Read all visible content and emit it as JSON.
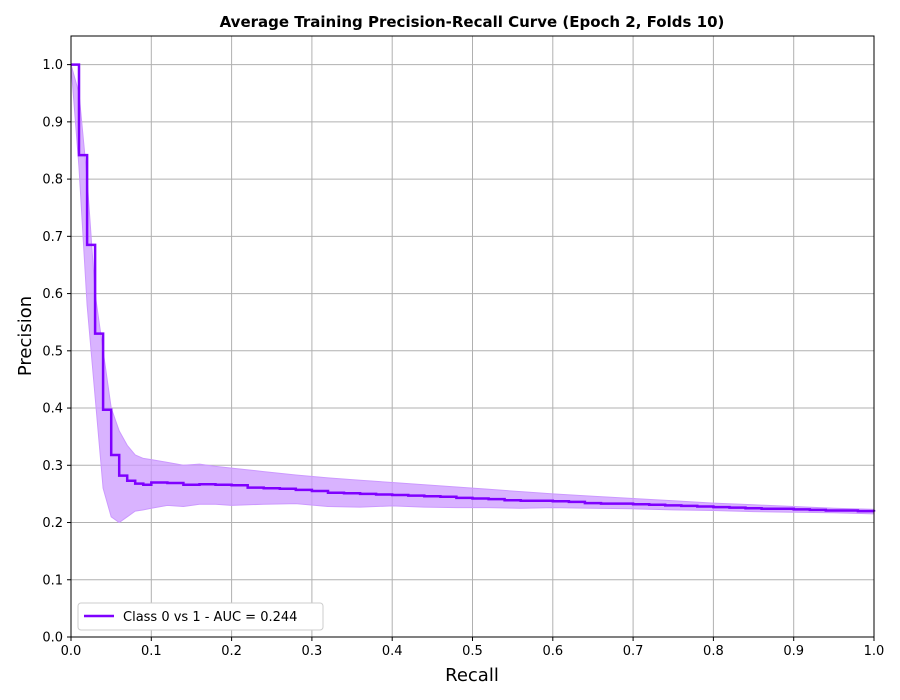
{
  "chart_data": {
    "type": "line",
    "title": "Average Training Precision-Recall Curve (Epoch 2, Folds 10)",
    "xlabel": "Recall",
    "ylabel": "Precision",
    "xlim": [
      0.0,
      1.0
    ],
    "ylim": [
      0.0,
      1.05
    ],
    "xticks": [
      "0.0",
      "0.1",
      "0.2",
      "0.3",
      "0.4",
      "0.5",
      "0.6",
      "0.7",
      "0.8",
      "0.9",
      "1.0"
    ],
    "yticks": [
      "0.0",
      "0.1",
      "0.2",
      "0.3",
      "0.4",
      "0.5",
      "0.6",
      "0.7",
      "0.8",
      "0.9",
      "1.0"
    ],
    "grid": true,
    "legend_position": "lower-left",
    "series": [
      {
        "name": "Class 0 vs 1  -  AUC = 0.244",
        "color": "#7f00ff",
        "band_color": "#cc99ff",
        "step": true,
        "x": [
          0.0,
          0.01,
          0.02,
          0.03,
          0.04,
          0.05,
          0.06,
          0.07,
          0.08,
          0.09,
          0.1,
          0.12,
          0.14,
          0.16,
          0.18,
          0.2,
          0.22,
          0.24,
          0.26,
          0.28,
          0.3,
          0.32,
          0.34,
          0.36,
          0.38,
          0.4,
          0.42,
          0.44,
          0.46,
          0.48,
          0.5,
          0.52,
          0.54,
          0.56,
          0.58,
          0.6,
          0.62,
          0.64,
          0.66,
          0.68,
          0.7,
          0.72,
          0.74,
          0.76,
          0.78,
          0.8,
          0.82,
          0.84,
          0.86,
          0.88,
          0.9,
          0.92,
          0.94,
          0.96,
          0.98,
          1.0
        ],
        "y": [
          1.0,
          0.842,
          0.685,
          0.53,
          0.397,
          0.318,
          0.282,
          0.273,
          0.268,
          0.266,
          0.27,
          0.269,
          0.266,
          0.267,
          0.266,
          0.265,
          0.261,
          0.26,
          0.259,
          0.257,
          0.255,
          0.252,
          0.251,
          0.25,
          0.249,
          0.248,
          0.247,
          0.246,
          0.245,
          0.243,
          0.242,
          0.241,
          0.239,
          0.238,
          0.238,
          0.237,
          0.236,
          0.234,
          0.233,
          0.233,
          0.232,
          0.231,
          0.23,
          0.229,
          0.228,
          0.227,
          0.226,
          0.225,
          0.224,
          0.224,
          0.223,
          0.222,
          0.221,
          0.221,
          0.22,
          0.219
        ],
        "band_x": [
          0.0,
          0.01,
          0.02,
          0.03,
          0.04,
          0.05,
          0.06,
          0.07,
          0.08,
          0.09,
          0.1,
          0.12,
          0.14,
          0.16,
          0.18,
          0.2,
          0.24,
          0.28,
          0.32,
          0.36,
          0.4,
          0.44,
          0.48,
          0.52,
          0.56,
          0.6,
          0.65,
          0.7,
          0.75,
          0.8,
          0.85,
          0.9,
          0.95,
          1.0
        ],
        "band_upper": [
          1.0,
          0.95,
          0.8,
          0.6,
          0.5,
          0.4,
          0.36,
          0.335,
          0.318,
          0.312,
          0.31,
          0.305,
          0.3,
          0.302,
          0.298,
          0.295,
          0.289,
          0.283,
          0.278,
          0.274,
          0.27,
          0.266,
          0.262,
          0.258,
          0.254,
          0.25,
          0.246,
          0.242,
          0.238,
          0.234,
          0.231,
          0.228,
          0.225,
          0.223
        ],
        "band_lower": [
          1.0,
          0.82,
          0.58,
          0.42,
          0.26,
          0.21,
          0.2,
          0.21,
          0.22,
          0.222,
          0.225,
          0.23,
          0.228,
          0.232,
          0.232,
          0.23,
          0.232,
          0.233,
          0.228,
          0.227,
          0.229,
          0.227,
          0.226,
          0.226,
          0.225,
          0.226,
          0.225,
          0.224,
          0.222,
          0.221,
          0.219,
          0.218,
          0.217,
          0.215
        ]
      }
    ]
  }
}
